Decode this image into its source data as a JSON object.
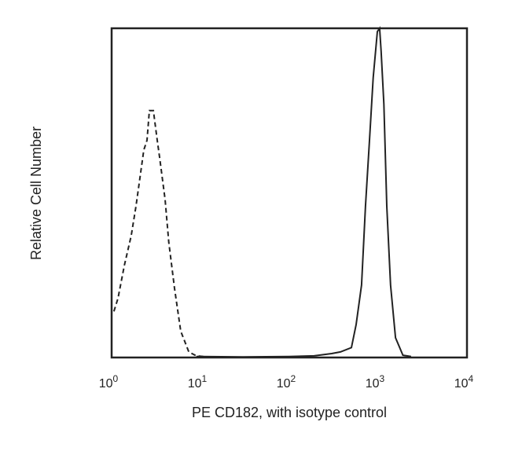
{
  "chart_data": {
    "type": "line",
    "title": "",
    "xlabel": "PE CD182, with isotype control",
    "ylabel": "Relative Cell Number",
    "x_scale": "log",
    "xlim": [
      1,
      10000
    ],
    "ylim": [
      0,
      100
    ],
    "grid": false,
    "x_ticks": [
      {
        "base": "10",
        "exp": "0",
        "value": 1
      },
      {
        "base": "10",
        "exp": "1",
        "value": 10
      },
      {
        "base": "10",
        "exp": "2",
        "value": 100
      },
      {
        "base": "10",
        "exp": "3",
        "value": 1000
      },
      {
        "base": "10",
        "exp": "4",
        "value": 10000
      }
    ],
    "series": [
      {
        "style": "dashed",
        "color": "#222222",
        "points": [
          [
            1.06,
            14
          ],
          [
            1.18,
            18
          ],
          [
            1.39,
            28
          ],
          [
            1.66,
            37
          ],
          [
            1.88,
            46
          ],
          [
            2.17,
            58
          ],
          [
            2.3,
            63
          ],
          [
            2.5,
            66
          ],
          [
            2.66,
            75
          ],
          [
            2.95,
            75
          ],
          [
            3.26,
            66
          ],
          [
            3.46,
            61
          ],
          [
            4.0,
            48
          ],
          [
            4.4,
            35
          ],
          [
            5.1,
            21
          ],
          [
            6.0,
            8
          ],
          [
            7.4,
            1.7
          ],
          [
            9,
            0.5
          ],
          [
            12,
            0.2
          ],
          [
            20,
            0
          ]
        ]
      },
      {
        "style": "solid",
        "color": "#222222",
        "points": [
          [
            9,
            0.3
          ],
          [
            30,
            0.2
          ],
          [
            100,
            0.3
          ],
          [
            190,
            0.5
          ],
          [
            300,
            1.2
          ],
          [
            376,
            1.7
          ],
          [
            500,
            3
          ],
          [
            565,
            10
          ],
          [
            650,
            22
          ],
          [
            720,
            46
          ],
          [
            800,
            66
          ],
          [
            880,
            85
          ],
          [
            980,
            99
          ],
          [
            1040,
            100
          ],
          [
            1080,
            93
          ],
          [
            1160,
            77
          ],
          [
            1250,
            46
          ],
          [
            1380,
            22
          ],
          [
            1570,
            6
          ],
          [
            1900,
            0.7
          ],
          [
            2350,
            0.3
          ]
        ]
      }
    ]
  }
}
